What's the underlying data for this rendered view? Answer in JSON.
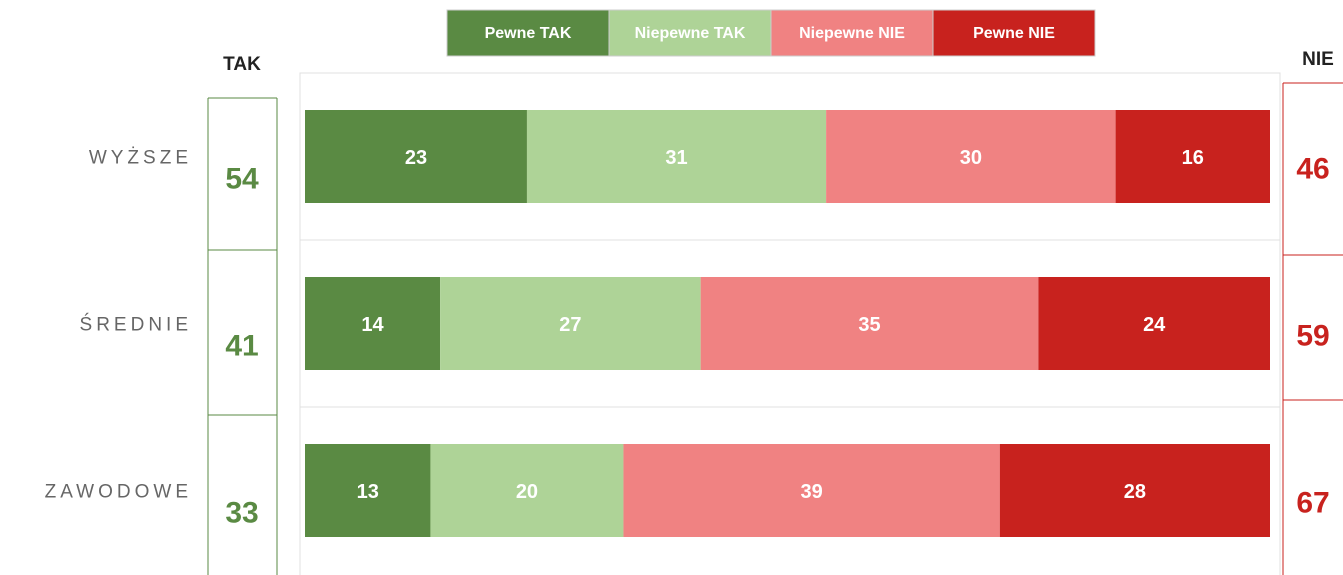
{
  "chart_data": {
    "type": "stacked-bar",
    "orientation": "horizontal",
    "categories": [
      "WYŻSZE",
      "ŚREDNIE",
      "ZAWODOWE"
    ],
    "series": [
      {
        "name": "Pewne TAK",
        "color": "#5a8a43",
        "values": [
          23,
          14,
          13
        ]
      },
      {
        "name": "Niepewne TAK",
        "color": "#aed397",
        "values": [
          31,
          27,
          20
        ]
      },
      {
        "name": "Niepewne NIE",
        "color": "#f08282",
        "values": [
          30,
          35,
          39
        ]
      },
      {
        "name": "Pewne NIE",
        "color": "#c8221e",
        "values": [
          16,
          24,
          28
        ]
      }
    ],
    "xlim": [
      0,
      100
    ],
    "legend": "top",
    "left_totals": {
      "label": "TAK",
      "color": "#5a8a43",
      "values": [
        54,
        41,
        33
      ]
    },
    "right_totals": {
      "label": "NIE",
      "color": "#c8221e",
      "values": [
        46,
        59,
        67
      ]
    }
  }
}
